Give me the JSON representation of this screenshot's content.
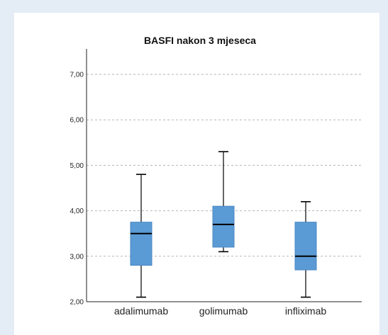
{
  "chart_data": {
    "type": "box",
    "title": "BASFI nakon 3 mjeseca",
    "xlabel": "",
    "ylabel": "",
    "ylim": [
      2,
      7.5
    ],
    "yticks": [
      "2,00",
      "3,00",
      "4,00",
      "5,00",
      "6,00",
      "7,00"
    ],
    "ytick_values": [
      2,
      3,
      4,
      5,
      6,
      7
    ],
    "grid": "horizontal dashed",
    "box_color": "#5b9bd5",
    "categories": [
      "adalimumab",
      "golimumab",
      "infliximab"
    ],
    "boxes": [
      {
        "category": "adalimumab",
        "min": 2.1,
        "q1": 2.8,
        "median": 3.5,
        "q3": 3.75,
        "max": 4.8
      },
      {
        "category": "golimumab",
        "min": 3.1,
        "q1": 3.2,
        "median": 3.7,
        "q3": 4.1,
        "max": 5.3
      },
      {
        "category": "infliximab",
        "min": 2.1,
        "q1": 2.7,
        "median": 3.0,
        "q3": 3.75,
        "max": 4.2
      }
    ]
  }
}
